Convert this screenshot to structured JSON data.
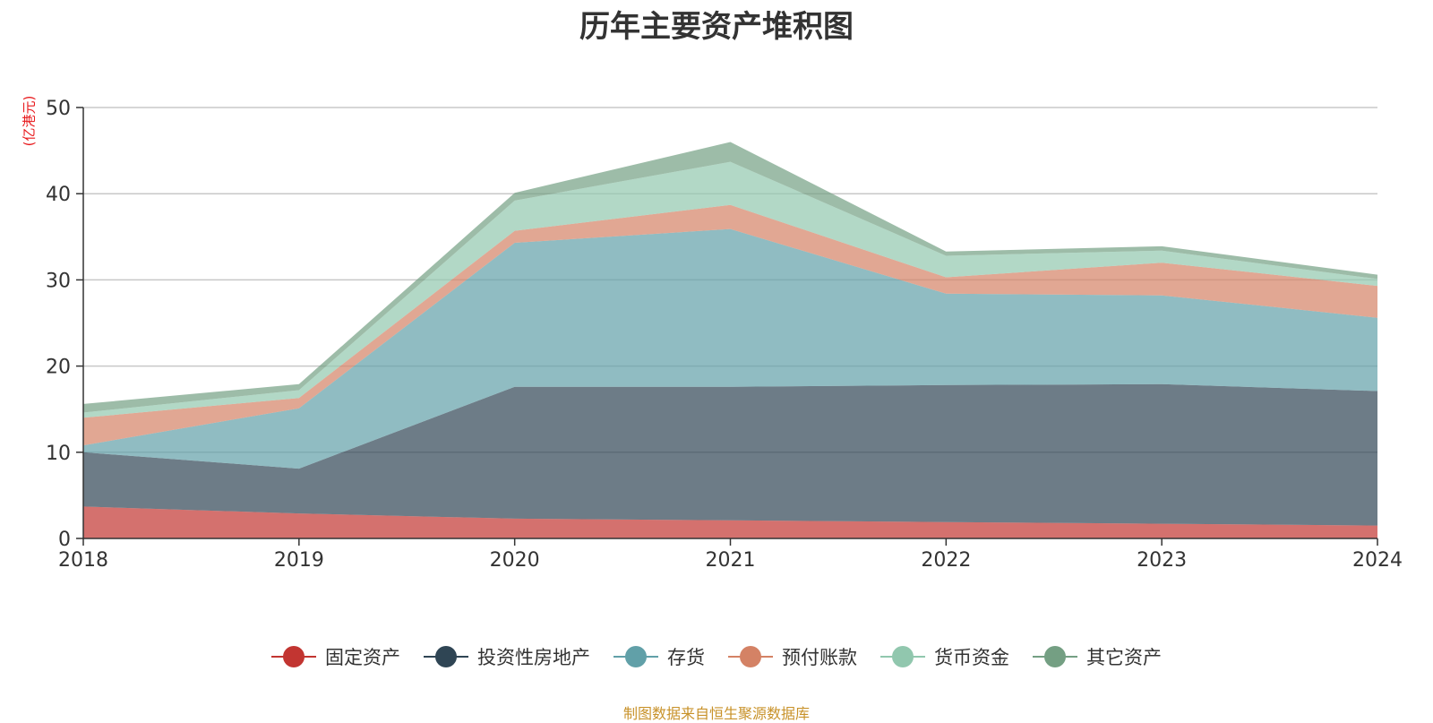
{
  "chart_data": {
    "type": "area",
    "stacked": true,
    "title": "历年主要资产堆积图",
    "ylabel": "(亿港元)",
    "xlabel": "",
    "categories": [
      "2018",
      "2019",
      "2020",
      "2021",
      "2022",
      "2023",
      "2024"
    ],
    "ylim": [
      0,
      50
    ],
    "yticks": [
      0,
      10,
      20,
      30,
      40,
      50
    ],
    "grid": true,
    "legend_position": "bottom",
    "series": [
      {
        "name": "固定资产",
        "color": "#c23531",
        "values": [
          3.7,
          2.9,
          2.3,
          2.1,
          1.9,
          1.7,
          1.5
        ]
      },
      {
        "name": "投资性房地产",
        "color": "#2f4554",
        "values": [
          6.3,
          5.2,
          15.3,
          15.5,
          15.9,
          16.2,
          15.6
        ]
      },
      {
        "name": "存货",
        "color": "#61a0a8",
        "values": [
          0.8,
          7.0,
          16.7,
          18.3,
          10.6,
          10.3,
          8.5
        ]
      },
      {
        "name": "预付账款",
        "color": "#d48265",
        "values": [
          3.2,
          1.2,
          1.4,
          2.8,
          1.9,
          3.8,
          3.7
        ]
      },
      {
        "name": "货币资金",
        "color": "#91c7ae",
        "values": [
          0.6,
          0.9,
          3.5,
          5.0,
          2.5,
          1.4,
          0.8
        ]
      },
      {
        "name": "其它资产",
        "color": "#749f83",
        "values": [
          1.0,
          0.7,
          0.9,
          2.3,
          0.5,
          0.5,
          0.5
        ]
      }
    ]
  },
  "footer": {
    "source": "制图数据来自恒生聚源数据库"
  }
}
